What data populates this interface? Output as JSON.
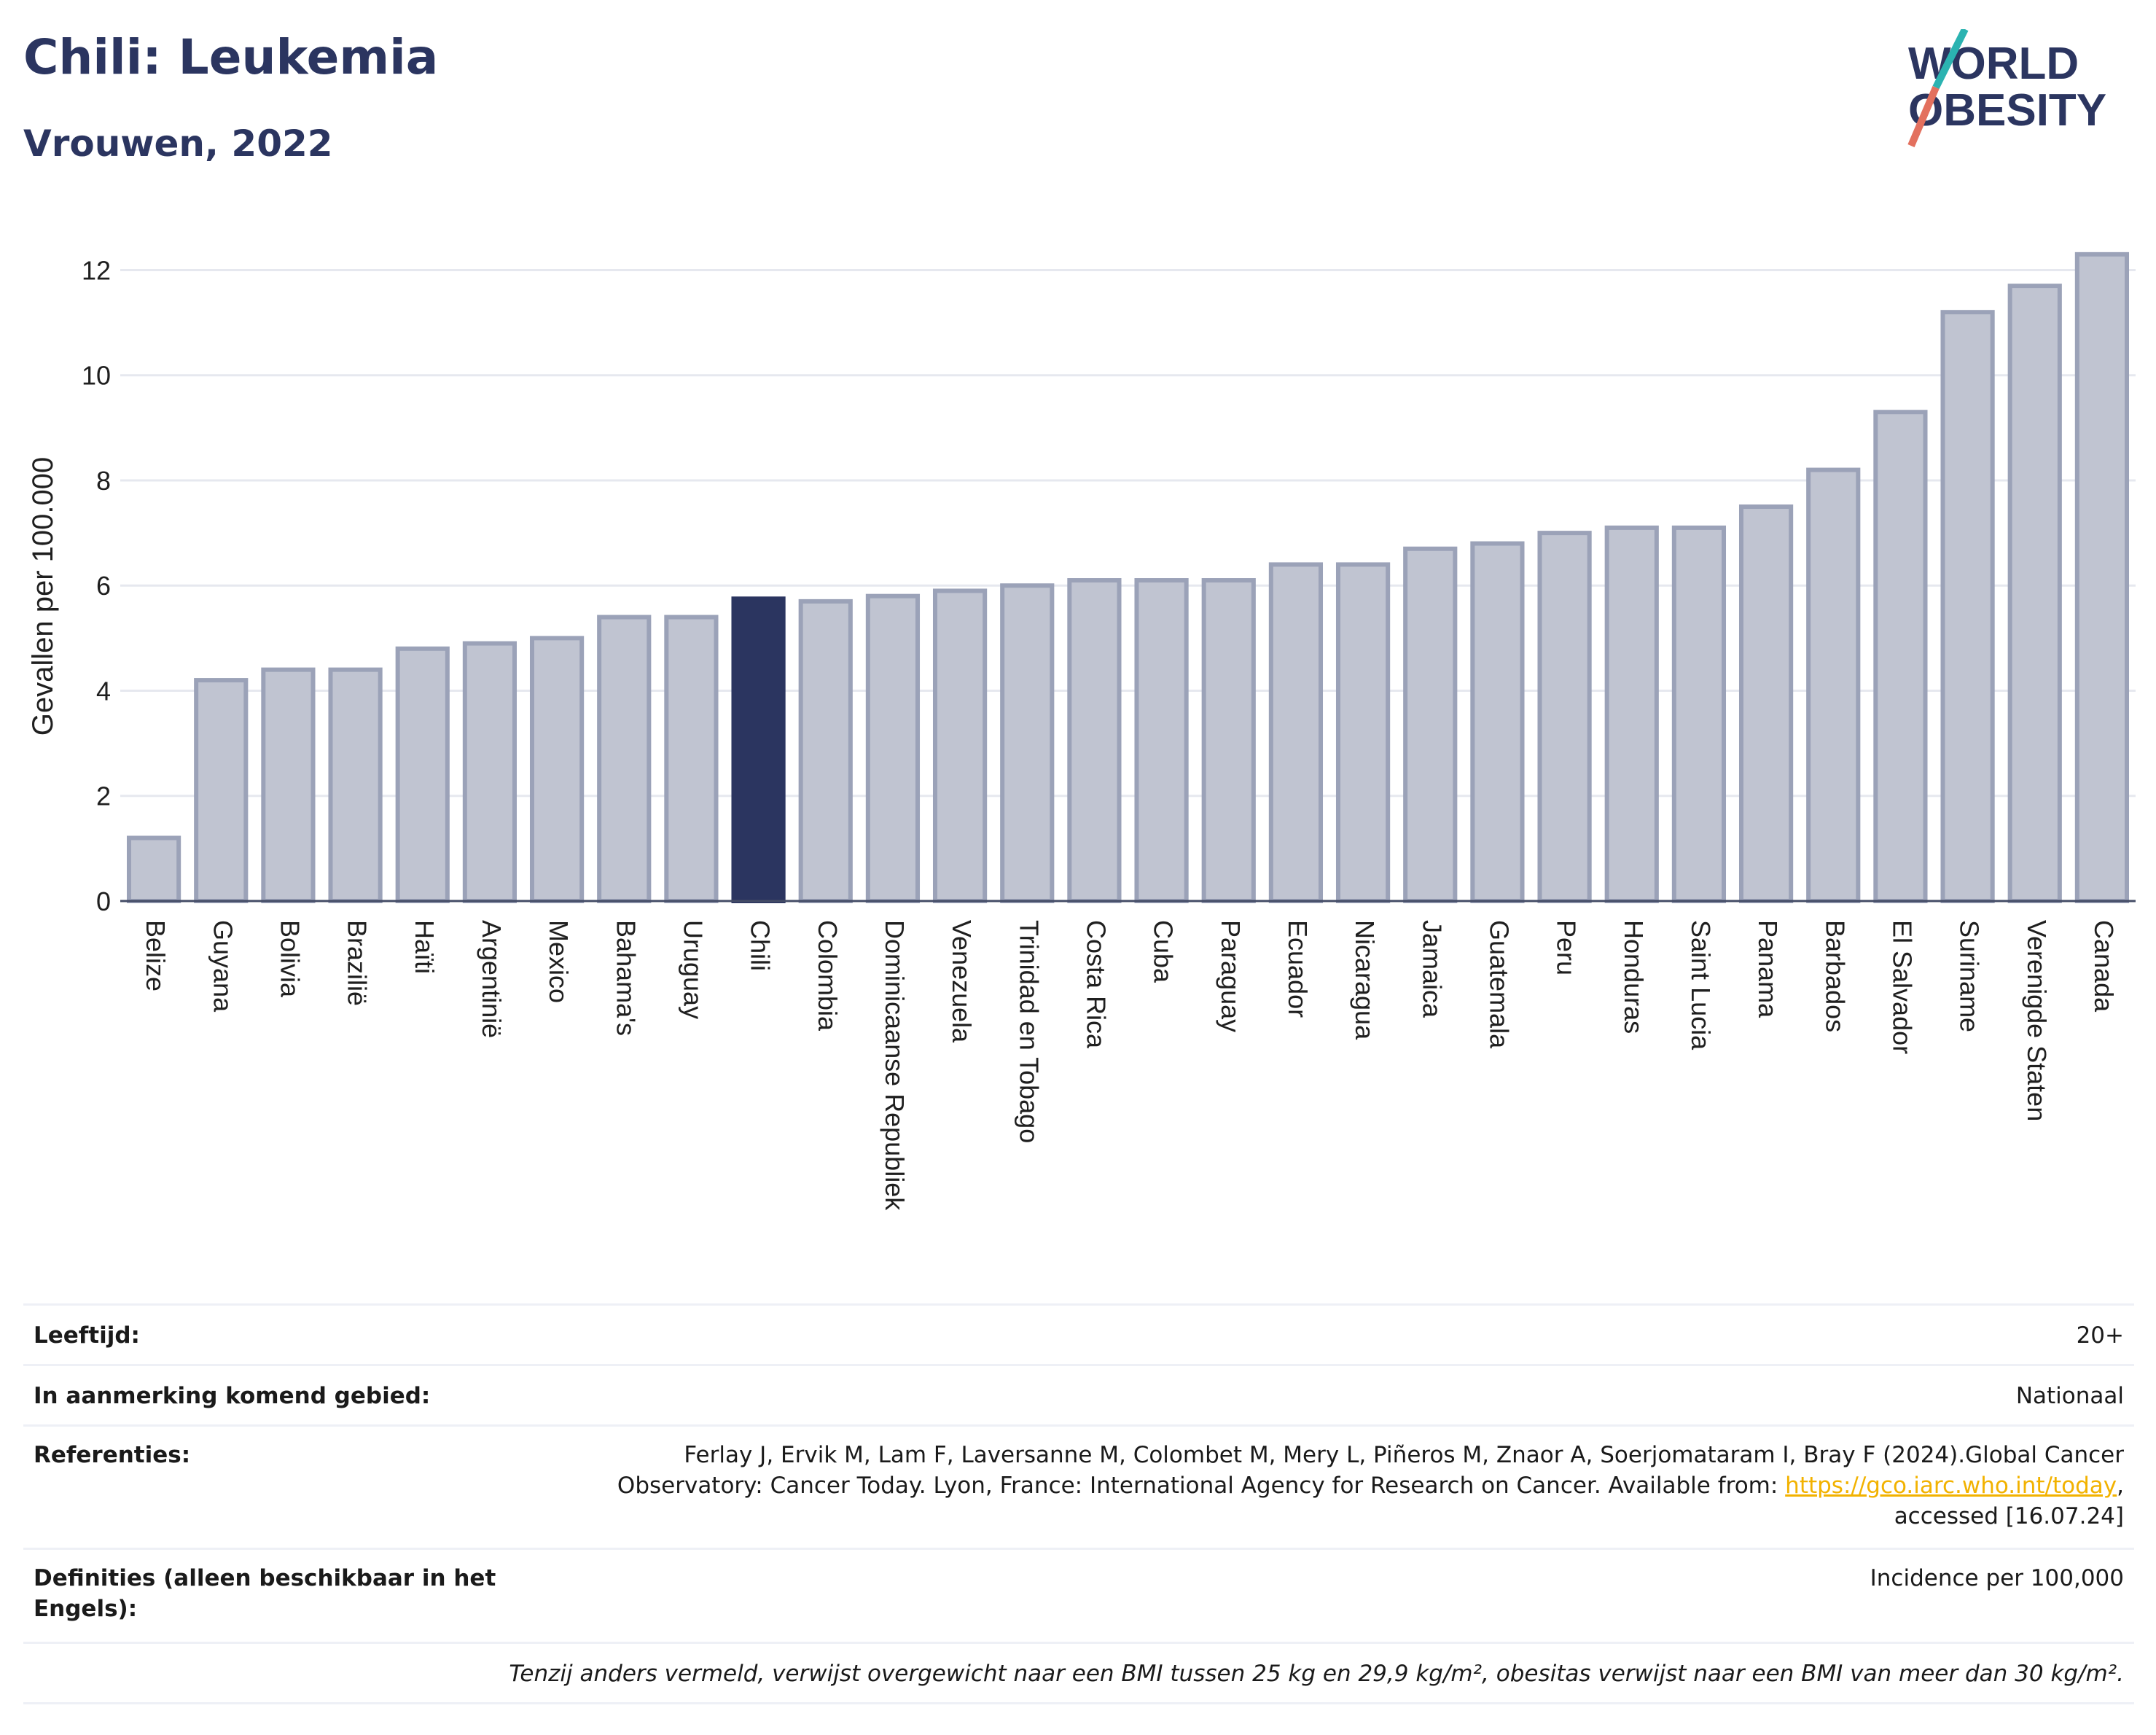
{
  "title": "Chili: Leukemia",
  "subtitle": "Vrouwen, 2022",
  "logo": {
    "line1": "WORLD",
    "line2": "OBESITY"
  },
  "colors": {
    "bar": "#c0c4d1",
    "bar_edge": "#9ba2b8",
    "highlight": "#2b3560",
    "grid": "#e6e8ef",
    "text": "#1f1f1f"
  },
  "chart_data": {
    "type": "bar",
    "ylabel": "Gevallen per 100.000",
    "ylim": [
      0,
      12.7
    ],
    "yticks": [
      0,
      2,
      4,
      6,
      8,
      10,
      12
    ],
    "highlight": "Chili",
    "grid": true,
    "categories": [
      "Belize",
      "Guyana",
      "Bolivia",
      "Brazilië",
      "Haïti",
      "Argentinië",
      "Mexico",
      "Bahama's",
      "Uruguay",
      "Chili",
      "Colombia",
      "Dominicaanse Republiek",
      "Venezuela",
      "Trinidad en Tobago",
      "Costa Rica",
      "Cuba",
      "Paraguay",
      "Ecuador",
      "Nicaragua",
      "Jamaica",
      "Guatemala",
      "Peru",
      "Honduras",
      "Saint Lucia",
      "Panama",
      "Barbados",
      "El Salvador",
      "Suriname",
      "Verenigde Staten",
      "Canada"
    ],
    "values": [
      1.2,
      4.2,
      4.4,
      4.4,
      4.8,
      4.9,
      5.0,
      5.4,
      5.4,
      5.75,
      5.7,
      5.8,
      5.9,
      6.0,
      6.1,
      6.1,
      6.1,
      6.4,
      6.4,
      6.7,
      6.8,
      7.0,
      7.1,
      7.1,
      7.5,
      8.2,
      9.3,
      11.2,
      11.7,
      12.3
    ]
  },
  "info": {
    "age_label": "Leeftijd:",
    "age_value": "20+",
    "area_label": "In aanmerking komend gebied:",
    "area_value": "Nationaal",
    "ref_label": "Referenties:",
    "ref_text_1": "Ferlay J, Ervik M, Lam F, Laversanne M, Colombet M, Mery L, Piñeros M, Znaor A, Soerjomataram I, Bray F (2024).Global Cancer",
    "ref_text_2": "Observatory: Cancer Today. Lyon, France: International Agency for Research on Cancer. Available from: ",
    "ref_link": "https://gco.iarc.who.int/today",
    "ref_text_3": ",",
    "ref_text_4": "accessed [16.07.24]",
    "def_label": "Definities (alleen beschikbaar in het Engels):",
    "def_value": "Incidence per 100,000",
    "note": "Tenzij anders vermeld, verwijst overgewicht naar een BMI tussen 25 kg en 29,9 kg/m², obesitas verwijst naar een BMI van meer dan 30 kg/m²."
  }
}
